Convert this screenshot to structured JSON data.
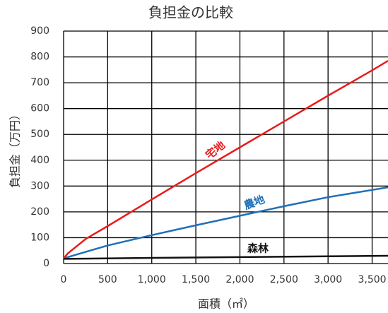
{
  "chart_data": {
    "type": "line",
    "title": "負担金の比較",
    "x_label": "面積（㎡）",
    "y_label": "負担金（万円）",
    "xlim": [
      0,
      3680
    ],
    "ylim": [
      0,
      900
    ],
    "xticks": [
      0,
      500,
      {
        "value": 1000,
        "label": "1,000"
      },
      {
        "value": 1500,
        "label": "1,500"
      },
      {
        "value": 2000,
        "label": "2,000"
      },
      {
        "value": 2500,
        "label": "2,500"
      },
      {
        "value": 3000,
        "label": "3,000"
      },
      {
        "value": 3500,
        "label": "3,500"
      }
    ],
    "yticks": [
      0,
      100,
      200,
      300,
      400,
      500,
      600,
      700,
      800,
      900
    ],
    "grid": true,
    "series": [
      {
        "name": "宅地",
        "color": "#e81c1c",
        "x": [
          0,
          50,
          250,
          500,
          1000,
          1500,
          2000,
          2500,
          3000,
          3500,
          3680
        ],
        "values": [
          20,
          40,
          95,
          145,
          248,
          350,
          450,
          550,
          650,
          748,
          785
        ]
      },
      {
        "name": "農地",
        "color": "#1f6fb8",
        "x": [
          0,
          300,
          500,
          1000,
          1500,
          2000,
          2500,
          3000,
          3500,
          3680
        ],
        "values": [
          20,
          50,
          70,
          110,
          148,
          185,
          222,
          257,
          285,
          295
        ]
      },
      {
        "name": "森林",
        "color": "#111111",
        "x": [
          0,
          1000,
          2000,
          3000,
          3680
        ],
        "values": [
          18,
          22,
          25,
          28,
          30
        ]
      }
    ]
  }
}
